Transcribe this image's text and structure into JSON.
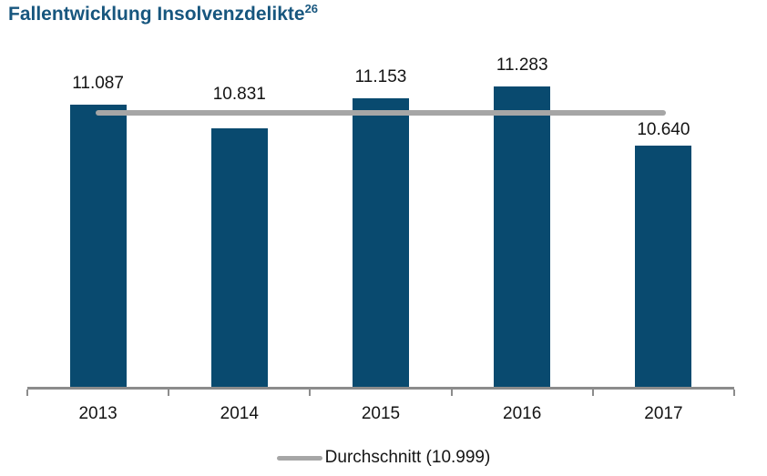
{
  "title": {
    "text": "Fallentwicklung Insolvenzdelikte",
    "footnote_ref": "26"
  },
  "chart_data": {
    "type": "bar",
    "title": "Fallentwicklung Insolvenzdelikte",
    "title_footnote": "26",
    "categories": [
      "2013",
      "2014",
      "2015",
      "2016",
      "2017"
    ],
    "series": [
      {
        "name": "Insolvenzdelikte",
        "values": [
          11087,
          10831,
          11153,
          11283,
          10640
        ]
      }
    ],
    "value_labels": [
      "11.087",
      "10.831",
      "11.153",
      "11.283",
      "10.640"
    ],
    "average_line": {
      "value": 10999,
      "label": "Durchschnitt (10.999)"
    },
    "ylim": [
      8000,
      11700
    ],
    "xlabel": "",
    "ylabel": "",
    "grid": false,
    "y_axis_visible": false,
    "legend_position": "bottom",
    "colors": {
      "bar": "#094A6F",
      "average_line": "#A6A6A6",
      "axis": "#8C8C8C",
      "title": "#17567E",
      "label": "#141414"
    }
  }
}
